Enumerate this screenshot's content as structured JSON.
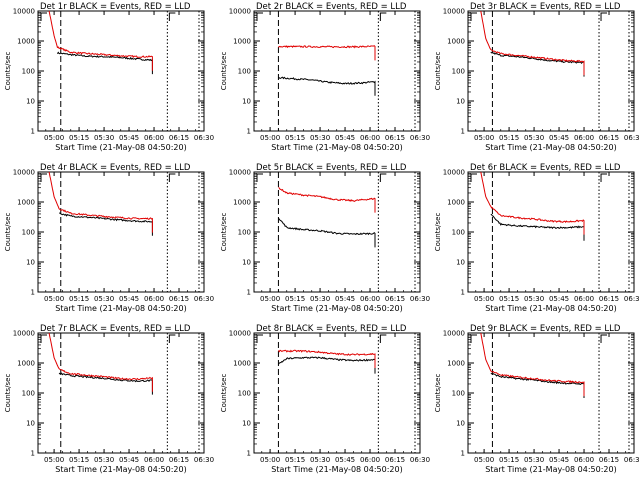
{
  "figure": {
    "xlabel": "Start Time (21-May-08 04:50:20)",
    "ylabel": "Counts/sec"
  },
  "colors": {
    "events": "#000000",
    "lld": "#e00000",
    "frame": "#000000",
    "marker": "#000000"
  },
  "chart_data": [
    {
      "type": "line",
      "title": "Det 1r BLACK = Events, RED = LLD",
      "xlabel": "Start Time (21-May-08 04:50:20)",
      "ylabel": "Counts/sec",
      "yscale": "log",
      "xlim": [
        "04:50:20",
        "06:30"
      ],
      "ylim": [
        1,
        10000
      ],
      "x_ticks": [
        "05:00",
        "05:15",
        "05:30",
        "05:45",
        "06:00",
        "06:15",
        "06:30"
      ],
      "y_ticks": [
        "1",
        "10",
        "100",
        "1000",
        "10000"
      ],
      "series": [
        {
          "role": "events",
          "points": [
            [
              "05:02",
              400
            ],
            [
              "05:10",
              350
            ],
            [
              "05:20",
              310
            ],
            [
              "05:30",
              300
            ],
            [
              "05:40",
              280
            ],
            [
              "05:50",
              250
            ],
            [
              "05:59",
              230
            ]
          ]
        },
        {
          "role": "lld",
          "points": [
            [
              "04:57",
              10000
            ],
            [
              "05:00",
              1500
            ],
            [
              "05:02",
              620
            ],
            [
              "05:10",
              420
            ],
            [
              "05:20",
              380
            ],
            [
              "05:30",
              350
            ],
            [
              "05:40",
              320
            ],
            [
              "05:50",
              300
            ],
            [
              "05:59",
              300
            ]
          ]
        }
      ],
      "vlines": [
        {
          "x": "05:04",
          "style": "dashed"
        },
        {
          "x": "06:08",
          "style": "dotted"
        },
        {
          "x": "06:27",
          "style": "dotted"
        }
      ]
    },
    {
      "type": "line",
      "title": "Det 2r BLACK = Events, RED = LLD",
      "xlabel": "Start Time (21-May-08 04:50:20)",
      "ylabel": "Counts/sec",
      "yscale": "log",
      "xlim": [
        "04:50:20",
        "06:30"
      ],
      "ylim": [
        1,
        10000
      ],
      "x_ticks": [
        "05:00",
        "05:15",
        "05:30",
        "05:45",
        "06:00",
        "06:15",
        "06:30"
      ],
      "y_ticks": [
        "1",
        "10",
        "100",
        "1000",
        "10000"
      ],
      "series": [
        {
          "role": "events",
          "points": [
            [
              "05:05",
              60
            ],
            [
              "05:15",
              55
            ],
            [
              "05:25",
              50
            ],
            [
              "05:35",
              42
            ],
            [
              "05:45",
              38
            ],
            [
              "05:55",
              40
            ],
            [
              "06:03",
              44
            ]
          ]
        },
        {
          "role": "lld",
          "points": [
            [
              "05:05",
              650
            ],
            [
              "05:20",
              650
            ],
            [
              "05:35",
              640
            ],
            [
              "05:50",
              640
            ],
            [
              "06:03",
              660
            ]
          ]
        }
      ],
      "vlines": [
        {
          "x": "05:05",
          "style": "dashed"
        },
        {
          "x": "06:05",
          "style": "dotted"
        },
        {
          "x": "06:27",
          "style": "dotted"
        }
      ]
    },
    {
      "type": "line",
      "title": "Det 3r BLACK = Events, RED = LLD",
      "xlabel": "Start Time (21-May-08 04:50:20)",
      "ylabel": "Counts/sec",
      "yscale": "log",
      "xlim": [
        "04:50:20",
        "06:30"
      ],
      "ylim": [
        1,
        10000
      ],
      "x_ticks": [
        "05:00",
        "05:15",
        "05:30",
        "05:45",
        "06:00",
        "06:15",
        "06:30"
      ],
      "y_ticks": [
        "1",
        "10",
        "100",
        "1000",
        "10000"
      ],
      "series": [
        {
          "role": "events",
          "points": [
            [
              "05:04",
              420
            ],
            [
              "05:10",
              330
            ],
            [
              "05:20",
              300
            ],
            [
              "05:30",
              260
            ],
            [
              "05:40",
              220
            ],
            [
              "05:50",
              200
            ],
            [
              "06:00",
              190
            ]
          ]
        },
        {
          "role": "lld",
          "points": [
            [
              "04:58",
              10000
            ],
            [
              "05:01",
              1200
            ],
            [
              "05:04",
              500
            ],
            [
              "05:10",
              380
            ],
            [
              "05:20",
              330
            ],
            [
              "05:30",
              290
            ],
            [
              "05:40",
              250
            ],
            [
              "05:50",
              220
            ],
            [
              "06:00",
              210
            ]
          ]
        }
      ],
      "vlines": [
        {
          "x": "05:05",
          "style": "dashed"
        },
        {
          "x": "06:09",
          "style": "dotted"
        },
        {
          "x": "06:27",
          "style": "dotted"
        }
      ]
    },
    {
      "type": "line",
      "title": "Det 4r BLACK = Events, RED = LLD",
      "xlabel": "Start Time (21-May-08 04:50:20)",
      "ylabel": "Counts/sec",
      "yscale": "log",
      "xlim": [
        "04:50:20",
        "06:30"
      ],
      "ylim": [
        1,
        10000
      ],
      "x_ticks": [
        "05:00",
        "05:15",
        "05:30",
        "05:45",
        "06:00",
        "06:15",
        "06:30"
      ],
      "y_ticks": [
        "1",
        "10",
        "100",
        "1000",
        "10000"
      ],
      "series": [
        {
          "role": "events",
          "points": [
            [
              "05:03",
              420
            ],
            [
              "05:10",
              340
            ],
            [
              "05:20",
              310
            ],
            [
              "05:30",
              280
            ],
            [
              "05:40",
              250
            ],
            [
              "05:50",
              230
            ],
            [
              "05:59",
              220
            ]
          ]
        },
        {
          "role": "lld",
          "points": [
            [
              "04:57",
              10000
            ],
            [
              "05:00",
              1500
            ],
            [
              "05:03",
              600
            ],
            [
              "05:10",
              420
            ],
            [
              "05:20",
              370
            ],
            [
              "05:30",
              330
            ],
            [
              "05:40",
              300
            ],
            [
              "05:50",
              280
            ],
            [
              "05:59",
              280
            ]
          ]
        }
      ],
      "vlines": [
        {
          "x": "05:04",
          "style": "dashed"
        },
        {
          "x": "06:08",
          "style": "dotted"
        },
        {
          "x": "06:27",
          "style": "dotted"
        }
      ]
    },
    {
      "type": "line",
      "title": "Det 5r BLACK = Events, RED = LLD",
      "xlabel": "Start Time (21-May-08 04:50:20)",
      "ylabel": "Counts/sec",
      "yscale": "log",
      "xlim": [
        "04:50:20",
        "06:30"
      ],
      "ylim": [
        1,
        10000
      ],
      "x_ticks": [
        "05:00",
        "05:15",
        "05:30",
        "05:45",
        "06:00",
        "06:15",
        "06:30"
      ],
      "y_ticks": [
        "1",
        "10",
        "100",
        "1000",
        "10000"
      ],
      "series": [
        {
          "role": "events",
          "points": [
            [
              "05:05",
              300
            ],
            [
              "05:10",
              140
            ],
            [
              "05:20",
              120
            ],
            [
              "05:30",
              110
            ],
            [
              "05:40",
              90
            ],
            [
              "05:50",
              85
            ],
            [
              "06:03",
              90
            ]
          ]
        },
        {
          "role": "lld",
          "points": [
            [
              "05:05",
              3000
            ],
            [
              "05:10",
              2000
            ],
            [
              "05:20",
              1700
            ],
            [
              "05:30",
              1500
            ],
            [
              "05:40",
              1200
            ],
            [
              "05:50",
              1100
            ],
            [
              "06:03",
              1300
            ]
          ]
        }
      ],
      "vlines": [
        {
          "x": "05:05",
          "style": "dashed"
        },
        {
          "x": "06:05",
          "style": "dotted"
        },
        {
          "x": "06:27",
          "style": "dotted"
        }
      ]
    },
    {
      "type": "line",
      "title": "Det 6r BLACK = Events, RED = LLD",
      "xlabel": "Start Time (21-May-08 04:50:20)",
      "ylabel": "Counts/sec",
      "yscale": "log",
      "xlim": [
        "04:50:20",
        "06:30"
      ],
      "ylim": [
        1,
        10000
      ],
      "x_ticks": [
        "05:00",
        "05:15",
        "05:30",
        "05:45",
        "06:00",
        "06:15",
        "06:30"
      ],
      "y_ticks": [
        "1",
        "10",
        "100",
        "1000",
        "10000"
      ],
      "series": [
        {
          "role": "events",
          "points": [
            [
              "05:04",
              400
            ],
            [
              "05:10",
              180
            ],
            [
              "05:20",
              160
            ],
            [
              "05:30",
              150
            ],
            [
              "05:40",
              140
            ],
            [
              "05:50",
              140
            ],
            [
              "06:00",
              150
            ]
          ]
        },
        {
          "role": "lld",
          "points": [
            [
              "04:58",
              10000
            ],
            [
              "05:01",
              1500
            ],
            [
              "05:04",
              700
            ],
            [
              "05:10",
              350
            ],
            [
              "05:20",
              300
            ],
            [
              "05:30",
              270
            ],
            [
              "05:40",
              230
            ],
            [
              "05:50",
              220
            ],
            [
              "06:00",
              240
            ]
          ]
        }
      ],
      "vlines": [
        {
          "x": "05:05",
          "style": "dashed"
        },
        {
          "x": "06:09",
          "style": "dotted"
        },
        {
          "x": "06:27",
          "style": "dotted"
        }
      ]
    },
    {
      "type": "line",
      "title": "Det 7r BLACK = Events, RED = LLD",
      "xlabel": "Start Time (21-May-08 04:50:20)",
      "ylabel": "Counts/sec",
      "yscale": "log",
      "xlim": [
        "04:50:20",
        "06:30"
      ],
      "ylim": [
        1,
        10000
      ],
      "x_ticks": [
        "05:00",
        "05:15",
        "05:30",
        "05:45",
        "06:00",
        "06:15",
        "06:30"
      ],
      "y_ticks": [
        "1",
        "10",
        "100",
        "1000",
        "10000"
      ],
      "series": [
        {
          "role": "events",
          "points": [
            [
              "05:03",
              450
            ],
            [
              "05:10",
              380
            ],
            [
              "05:20",
              340
            ],
            [
              "05:30",
              310
            ],
            [
              "05:40",
              270
            ],
            [
              "05:50",
              250
            ],
            [
              "05:59",
              260
            ]
          ]
        },
        {
          "role": "lld",
          "points": [
            [
              "04:57",
              10000
            ],
            [
              "05:00",
              1500
            ],
            [
              "05:03",
              620
            ],
            [
              "05:10",
              440
            ],
            [
              "05:20",
              390
            ],
            [
              "05:30",
              350
            ],
            [
              "05:40",
              300
            ],
            [
              "05:50",
              290
            ],
            [
              "05:59",
              320
            ]
          ]
        }
      ],
      "vlines": [
        {
          "x": "05:04",
          "style": "dashed"
        },
        {
          "x": "06:08",
          "style": "dotted"
        },
        {
          "x": "06:27",
          "style": "dotted"
        }
      ]
    },
    {
      "type": "line",
      "title": "Det 8r BLACK = Events, RED = LLD",
      "xlabel": "Start Time (21-May-08 04:50:20)",
      "ylabel": "Counts/sec",
      "yscale": "log",
      "xlim": [
        "04:50:20",
        "06:30"
      ],
      "ylim": [
        1,
        10000
      ],
      "x_ticks": [
        "05:00",
        "05:15",
        "05:30",
        "05:45",
        "06:00",
        "06:15",
        "06:30"
      ],
      "y_ticks": [
        "1",
        "10",
        "100",
        "1000",
        "10000"
      ],
      "series": [
        {
          "role": "events",
          "points": [
            [
              "05:05",
              900
            ],
            [
              "05:10",
              1400
            ],
            [
              "05:20",
              1500
            ],
            [
              "05:30",
              1500
            ],
            [
              "05:40",
              1300
            ],
            [
              "05:50",
              1200
            ],
            [
              "06:03",
              1300
            ]
          ]
        },
        {
          "role": "lld",
          "points": [
            [
              "05:05",
              2500
            ],
            [
              "05:20",
              2500
            ],
            [
              "05:30",
              2300
            ],
            [
              "05:40",
              2000
            ],
            [
              "05:50",
              1900
            ],
            [
              "06:03",
              2000
            ]
          ]
        }
      ],
      "vlines": [
        {
          "x": "05:05",
          "style": "dashed"
        },
        {
          "x": "06:05",
          "style": "dotted"
        },
        {
          "x": "06:27",
          "style": "dotted"
        }
      ]
    },
    {
      "type": "line",
      "title": "Det 9r BLACK = Events, RED = LLD",
      "xlabel": "Start Time (21-May-08 04:50:20)",
      "ylabel": "Counts/sec",
      "yscale": "log",
      "xlim": [
        "04:50:20",
        "06:30"
      ],
      "ylim": [
        1,
        10000
      ],
      "x_ticks": [
        "05:00",
        "05:15",
        "05:30",
        "05:45",
        "06:00",
        "06:15",
        "06:30"
      ],
      "y_ticks": [
        "1",
        "10",
        "100",
        "1000",
        "10000"
      ],
      "series": [
        {
          "role": "events",
          "points": [
            [
              "05:04",
              450
            ],
            [
              "05:10",
              350
            ],
            [
              "05:20",
              300
            ],
            [
              "05:30",
              270
            ],
            [
              "05:40",
              230
            ],
            [
              "05:50",
              210
            ],
            [
              "06:00",
              200
            ]
          ]
        },
        {
          "role": "lld",
          "points": [
            [
              "04:58",
              10000
            ],
            [
              "05:01",
              1300
            ],
            [
              "05:04",
              550
            ],
            [
              "05:10",
              400
            ],
            [
              "05:20",
              340
            ],
            [
              "05:30",
              300
            ],
            [
              "05:40",
              260
            ],
            [
              "05:50",
              240
            ],
            [
              "06:00",
              230
            ]
          ]
        }
      ],
      "vlines": [
        {
          "x": "05:05",
          "style": "dashed"
        },
        {
          "x": "06:09",
          "style": "dotted"
        },
        {
          "x": "06:27",
          "style": "dotted"
        }
      ]
    }
  ]
}
